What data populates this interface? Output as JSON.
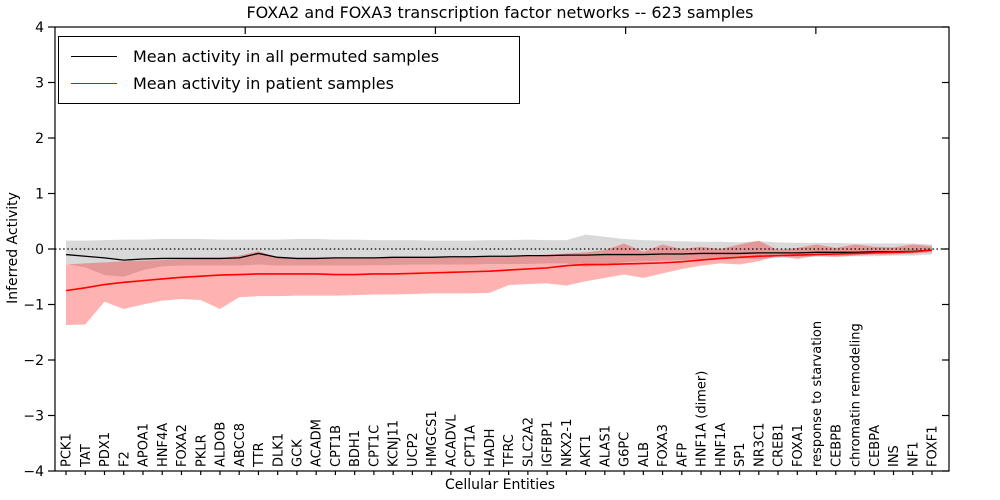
{
  "chart_data": {
    "type": "line",
    "title": "FOXA2 and FOXA3 transcription factor networks -- 623 samples",
    "xlabel": "Cellular Entities",
    "ylabel": "Inferred Activity",
    "ylim": [
      -4,
      4
    ],
    "ytick_values": [
      -4,
      -3,
      -2,
      -1,
      0,
      1,
      2,
      3,
      4
    ],
    "ytick_labels": [
      "−4",
      "−3",
      "−2",
      "−1",
      "0",
      "1",
      "2",
      "3",
      "4"
    ],
    "grid": false,
    "zero_reference_line": {
      "y": 0,
      "style": "dotted",
      "color": "#000000"
    },
    "legend_position": "upper left",
    "categories": [
      "PCK1",
      "TAT",
      "PDX1",
      "F2",
      "APOA1",
      "HNF4A",
      "FOXA2",
      "PKLR",
      "ALDOB",
      "ABCC8",
      "TTR",
      "DLK1",
      "GCK",
      "ACADM",
      "CPT1B",
      "BDH1",
      "CPT1C",
      "KCNJ11",
      "UCP2",
      "HMGCS1",
      "ACADVL",
      "CPT1A",
      "HADH",
      "TFRC",
      "SLC2A2",
      "IGFBP1",
      "NKX2-1",
      "AKT1",
      "ALAS1",
      "G6PC",
      "ALB",
      "FOXA3",
      "AFP",
      "HNF1A (dimer)",
      "HNF1A",
      "SP1",
      "NR3C1",
      "CREB1",
      "FOXA1",
      "response to starvation",
      "CEBPB",
      "chromatin remodeling",
      "CEBPA",
      "INS",
      "NF1",
      "FOXF1"
    ],
    "series": [
      {
        "name": "Mean activity in all permuted samples",
        "color": "#000000",
        "band_color": "rgba(0,0,0,0.15)",
        "values": [
          -0.1,
          -0.13,
          -0.16,
          -0.2,
          -0.18,
          -0.17,
          -0.17,
          -0.17,
          -0.17,
          -0.16,
          -0.08,
          -0.15,
          -0.17,
          -0.17,
          -0.16,
          -0.16,
          -0.16,
          -0.15,
          -0.15,
          -0.15,
          -0.14,
          -0.14,
          -0.13,
          -0.13,
          -0.12,
          -0.12,
          -0.11,
          -0.11,
          -0.1,
          -0.1,
          -0.1,
          -0.09,
          -0.09,
          -0.08,
          -0.08,
          -0.08,
          -0.07,
          -0.07,
          -0.07,
          -0.06,
          -0.06,
          -0.06,
          -0.05,
          -0.05,
          -0.04,
          -0.02
        ],
        "band_upper": [
          0.15,
          0.15,
          0.16,
          0.17,
          0.17,
          0.18,
          0.18,
          0.18,
          0.17,
          0.17,
          0.17,
          0.17,
          0.18,
          0.18,
          0.17,
          0.17,
          0.16,
          0.16,
          0.16,
          0.15,
          0.15,
          0.15,
          0.16,
          0.16,
          0.17,
          0.16,
          0.16,
          0.26,
          0.22,
          0.18,
          0.16,
          0.15,
          0.14,
          0.13,
          0.13,
          0.12,
          0.14,
          0.12,
          0.11,
          0.11,
          0.11,
          0.1,
          0.1,
          0.1,
          0.1,
          0.08
        ],
        "band_lower": [
          -0.27,
          -0.33,
          -0.47,
          -0.5,
          -0.38,
          -0.31,
          -0.3,
          -0.3,
          -0.3,
          -0.3,
          -0.28,
          -0.3,
          -0.3,
          -0.3,
          -0.3,
          -0.3,
          -0.29,
          -0.29,
          -0.28,
          -0.28,
          -0.28,
          -0.28,
          -0.27,
          -0.27,
          -0.27,
          -0.26,
          -0.26,
          -0.32,
          -0.28,
          -0.24,
          -0.22,
          -0.21,
          -0.2,
          -0.19,
          -0.18,
          -0.17,
          -0.18,
          -0.16,
          -0.15,
          -0.14,
          -0.14,
          -0.13,
          -0.13,
          -0.12,
          -0.12,
          -0.1
        ]
      },
      {
        "name": "Mean activity in patient samples",
        "color": "#ff0000",
        "band_color": "rgba(255,0,0,0.30)",
        "values": [
          -0.75,
          -0.7,
          -0.64,
          -0.6,
          -0.57,
          -0.54,
          -0.51,
          -0.49,
          -0.47,
          -0.46,
          -0.45,
          -0.45,
          -0.45,
          -0.45,
          -0.46,
          -0.46,
          -0.45,
          -0.45,
          -0.44,
          -0.43,
          -0.42,
          -0.41,
          -0.4,
          -0.38,
          -0.36,
          -0.34,
          -0.3,
          -0.28,
          -0.28,
          -0.27,
          -0.26,
          -0.25,
          -0.23,
          -0.2,
          -0.17,
          -0.15,
          -0.13,
          -0.12,
          -0.11,
          -0.1,
          -0.09,
          -0.08,
          -0.07,
          -0.06,
          -0.05,
          -0.02
        ],
        "band_upper": [
          -0.28,
          -0.26,
          -0.24,
          -0.22,
          -0.21,
          -0.2,
          -0.19,
          -0.18,
          -0.17,
          -0.12,
          -0.04,
          -0.15,
          -0.17,
          -0.17,
          -0.17,
          -0.17,
          -0.16,
          -0.16,
          -0.16,
          -0.15,
          -0.15,
          -0.14,
          -0.14,
          -0.13,
          -0.12,
          -0.1,
          -0.08,
          -0.06,
          -0.02,
          0.1,
          -0.05,
          0.08,
          0.0,
          0.04,
          0.0,
          0.08,
          0.15,
          -0.02,
          0.02,
          0.08,
          0.02,
          0.08,
          0.04,
          0.03,
          0.08,
          0.05
        ],
        "band_lower": [
          -1.37,
          -1.36,
          -0.95,
          -1.08,
          -1.0,
          -0.93,
          -0.9,
          -0.92,
          -1.08,
          -0.87,
          -0.85,
          -0.85,
          -0.84,
          -0.84,
          -0.84,
          -0.83,
          -0.82,
          -0.82,
          -0.81,
          -0.8,
          -0.8,
          -0.8,
          -0.79,
          -0.65,
          -0.63,
          -0.62,
          -0.66,
          -0.58,
          -0.52,
          -0.46,
          -0.52,
          -0.44,
          -0.36,
          -0.3,
          -0.26,
          -0.28,
          -0.22,
          -0.12,
          -0.18,
          -0.12,
          -0.14,
          -0.12,
          -0.1,
          -0.1,
          -0.08,
          -0.06
        ]
      }
    ]
  }
}
